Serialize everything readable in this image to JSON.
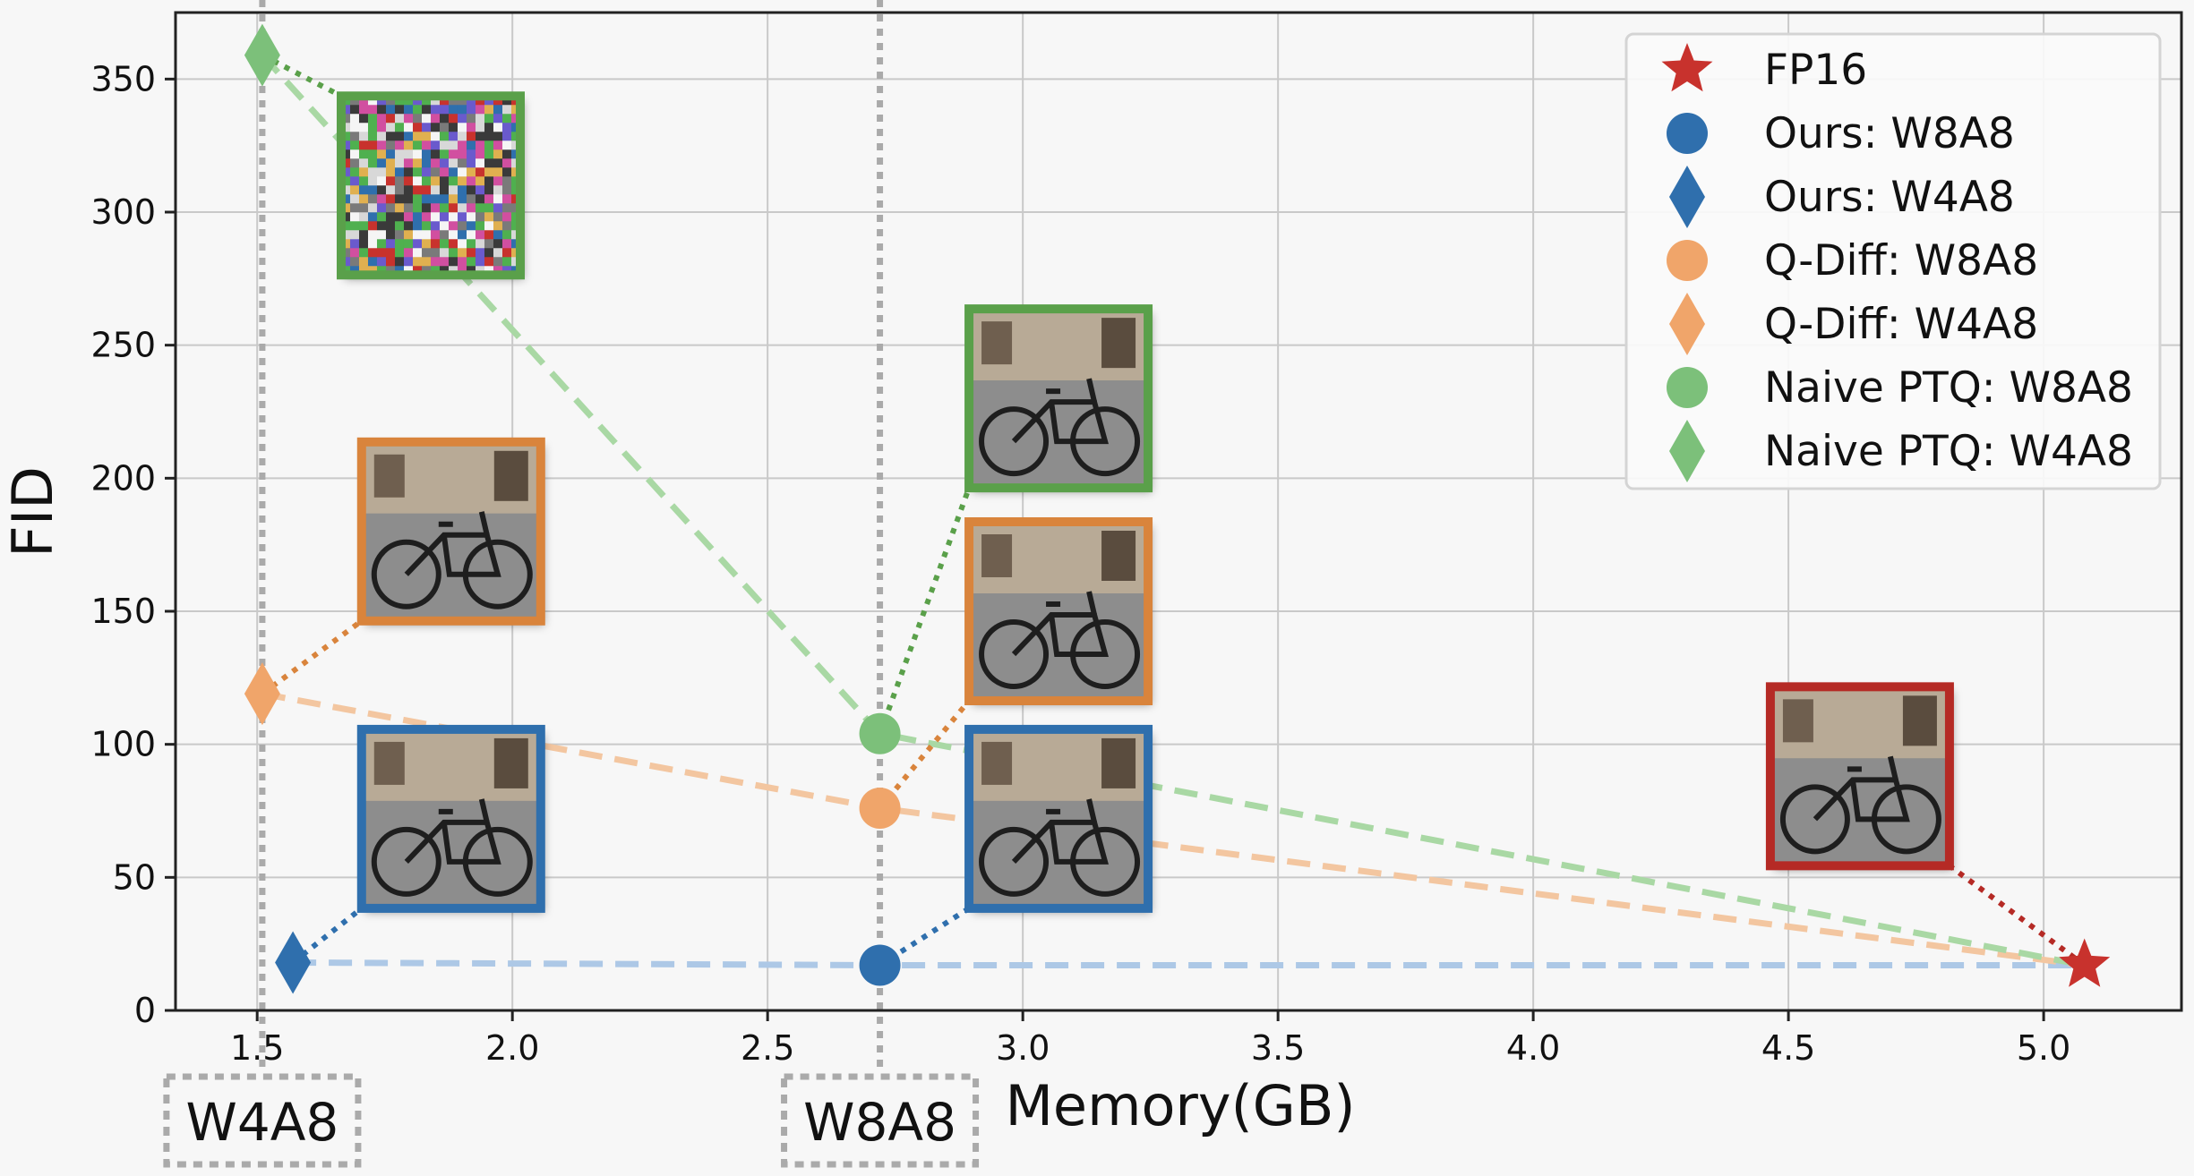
{
  "chart_data": {
    "type": "scatter",
    "xlabel": "Memory(GB)",
    "ylabel": "FID",
    "xlim": [
      1.34,
      5.27
    ],
    "ylim": [
      0,
      375
    ],
    "xticks": [
      "1.5",
      "2.0",
      "2.5",
      "3.0",
      "3.5",
      "4.0",
      "4.5",
      "5.0"
    ],
    "yticks": [
      "0",
      "50",
      "100",
      "150",
      "200",
      "250",
      "300",
      "350"
    ],
    "grid": true,
    "legend_position": "top-right",
    "memory_markers": [
      {
        "label": "W4A8",
        "x": 1.51
      },
      {
        "label": "W8A8",
        "x": 2.72
      }
    ],
    "series": [
      {
        "name": "FP16",
        "marker": "star",
        "color": "#c8322d",
        "points": [
          {
            "x": 5.08,
            "y": 17
          }
        ]
      },
      {
        "name": "Ours: W8A8",
        "marker": "circle",
        "color": "#2f6fad",
        "points": [
          {
            "x": 2.72,
            "y": 17
          }
        ]
      },
      {
        "name": "Ours: W4A8",
        "marker": "diamond",
        "color": "#2f6fad",
        "points": [
          {
            "x": 1.57,
            "y": 18
          }
        ]
      },
      {
        "name": "Q-Diff: W8A8",
        "marker": "circle",
        "color": "#f0a56a",
        "points": [
          {
            "x": 2.72,
            "y": 76
          }
        ]
      },
      {
        "name": "Q-Diff: W4A8",
        "marker": "diamond",
        "color": "#f0a56a",
        "points": [
          {
            "x": 1.51,
            "y": 119
          }
        ]
      },
      {
        "name": "Naive PTQ: W8A8",
        "marker": "circle",
        "color": "#7cc07a",
        "points": [
          {
            "x": 2.72,
            "y": 104
          }
        ]
      },
      {
        "name": "Naive PTQ: W4A8",
        "marker": "diamond",
        "color": "#7cc07a",
        "points": [
          {
            "x": 1.51,
            "y": 359
          }
        ]
      }
    ],
    "trend_lines": [
      {
        "color": "#adc8e6",
        "points": [
          [
            1.57,
            18
          ],
          [
            2.72,
            17
          ],
          [
            5.08,
            17
          ]
        ]
      },
      {
        "color": "#f3c6a0",
        "points": [
          [
            1.51,
            119
          ],
          [
            2.72,
            76
          ],
          [
            5.08,
            17
          ]
        ]
      },
      {
        "color": "#a9d8a4",
        "points": [
          [
            1.51,
            359
          ],
          [
            2.72,
            104
          ],
          [
            5.08,
            17
          ]
        ]
      }
    ],
    "thumbnails": [
      {
        "name": "thumb-naive-w4a8",
        "frame": "#5aa04a",
        "kind": "noise",
        "x": 1.84,
        "y": 310,
        "link": [
          1.51,
          359
        ]
      },
      {
        "name": "thumb-qdiff-w4a8",
        "frame": "#d9843c",
        "kind": "bike",
        "x": 1.88,
        "y": 180,
        "link": [
          1.51,
          119
        ]
      },
      {
        "name": "thumb-ours-w4a8",
        "frame": "#2f6fad",
        "kind": "bike",
        "x": 1.88,
        "y": 72,
        "link": [
          1.57,
          18
        ]
      },
      {
        "name": "thumb-naive-w8a8",
        "frame": "#5aa04a",
        "kind": "bike",
        "x": 3.07,
        "y": 230,
        "link": [
          2.72,
          104
        ]
      },
      {
        "name": "thumb-qdiff-w8a8",
        "frame": "#d9843c",
        "kind": "bike",
        "x": 3.07,
        "y": 150,
        "link": [
          2.72,
          76
        ]
      },
      {
        "name": "thumb-ours-w8a8",
        "frame": "#2f6fad",
        "kind": "bike",
        "x": 3.07,
        "y": 72,
        "link": [
          2.72,
          17
        ]
      },
      {
        "name": "thumb-fp16",
        "frame": "#b52a25",
        "kind": "bike",
        "x": 4.64,
        "y": 88,
        "link": [
          5.08,
          17
        ]
      }
    ]
  }
}
